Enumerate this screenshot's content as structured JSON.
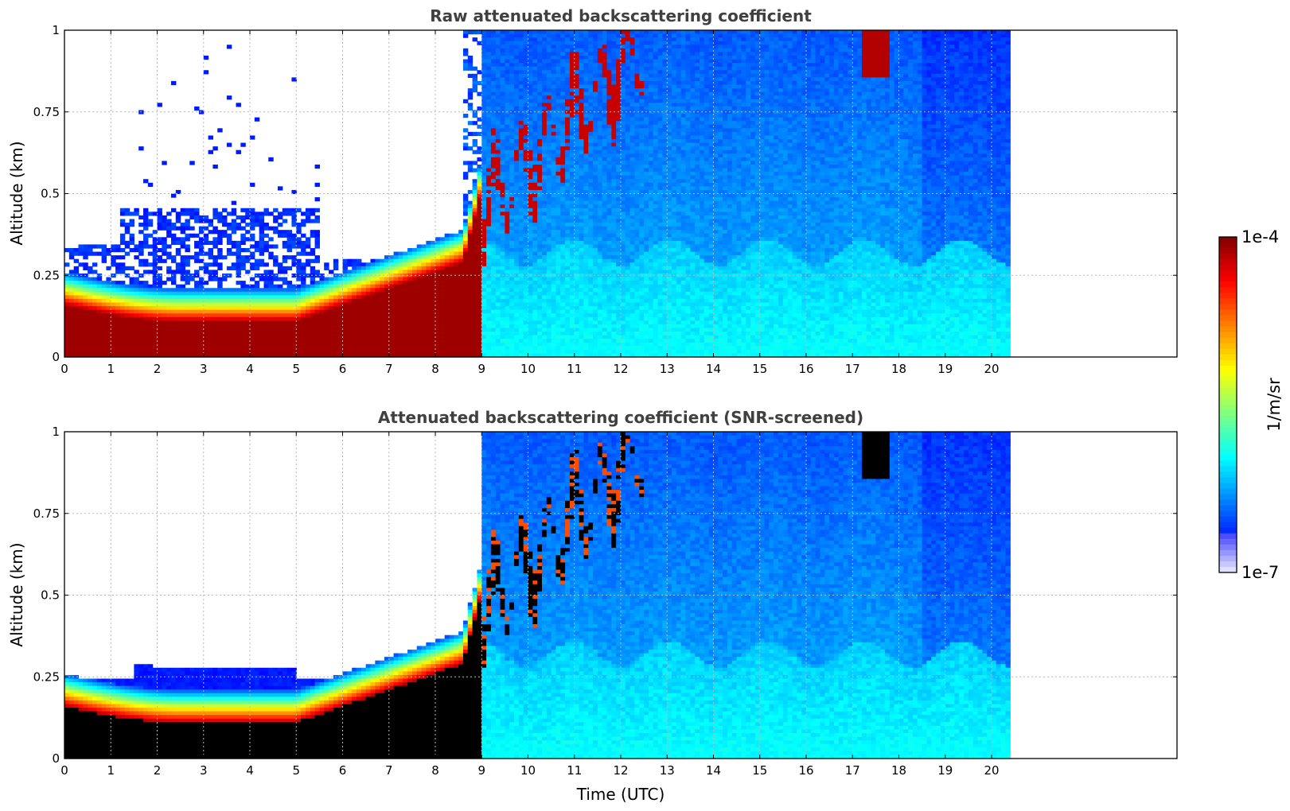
{
  "chart_data": [
    {
      "type": "heatmap",
      "title": "Raw attenuated backscattering coefficient",
      "xlabel": "",
      "ylabel": "Altitude (km)",
      "xlim": [
        0,
        24
      ],
      "ylim": [
        0,
        1
      ],
      "x_ticks": [
        "0",
        "1",
        "2",
        "3",
        "4",
        "5",
        "6",
        "7",
        "8",
        "9",
        "10",
        "11",
        "12",
        "13",
        "14",
        "15",
        "16",
        "17",
        "18",
        "19",
        "20"
      ],
      "y_ticks": [
        "0",
        "0.25",
        "0.5",
        "0.75",
        "1"
      ],
      "y_tick_values": [
        0,
        0.25,
        0.5,
        0.75,
        1
      ],
      "data_end_time": 20.4,
      "grid": true,
      "screened": false,
      "features": [
        {
          "time_range": [
            0,
            9
          ],
          "layer_top_km": [
            0.15,
            0.1,
            0.1,
            0.12,
            0.14,
            0.18,
            0.25
          ],
          "description": "boundary layer"
        },
        {
          "time_range": [
            9,
            12
          ],
          "cloud_top_km": [
            0.5,
            1.0
          ]
        },
        {
          "time_range": [
            17.2,
            17.8
          ],
          "cloud_base_km": 0.85
        }
      ]
    },
    {
      "type": "heatmap",
      "title": "Attenuated backscattering coefficient (SNR-screened)",
      "xlabel": "Time (UTC)",
      "ylabel": "Altitude (km)",
      "xlim": [
        0,
        24
      ],
      "ylim": [
        0,
        1
      ],
      "x_ticks": [
        "0",
        "1",
        "2",
        "3",
        "4",
        "5",
        "6",
        "7",
        "8",
        "9",
        "10",
        "11",
        "12",
        "13",
        "14",
        "15",
        "16",
        "17",
        "18",
        "19",
        "20"
      ],
      "y_ticks": [
        "0",
        "0.25",
        "0.5",
        "0.75",
        "1"
      ],
      "y_tick_values": [
        0,
        0.25,
        0.5,
        0.75,
        1
      ],
      "data_end_time": 20.4,
      "grid": true,
      "screened": true
    }
  ],
  "colorbar": {
    "label": "1/m/sr",
    "max_label": "1e-4",
    "min_label": "1e-7",
    "scale": "log",
    "range": [
      1e-07,
      0.0001
    ],
    "colormap": "jet"
  }
}
